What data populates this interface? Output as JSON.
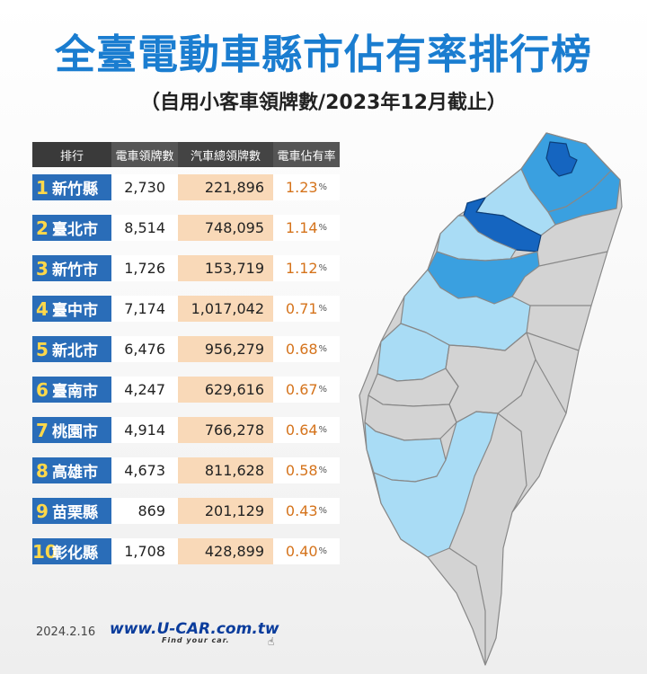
{
  "title": "全臺電動車縣市佔有率排行榜",
  "subtitle": "（自用小客車領牌數/2023年12月截止）",
  "table": {
    "headers": {
      "rank": "排行",
      "ev": "電車領牌數",
      "total": "汽車總領牌數",
      "rate": "電車佔有率"
    },
    "pct_symbol": "%"
  },
  "chart_data": {
    "type": "table",
    "columns": [
      "排行",
      "電車領牌數",
      "汽車總領牌數",
      "電車佔有率"
    ],
    "rows": [
      {
        "rank": "1",
        "city": "新竹縣",
        "ev": "2,730",
        "total": "221,896",
        "rate": "1.23"
      },
      {
        "rank": "2",
        "city": "臺北市",
        "ev": "8,514",
        "total": "748,095",
        "rate": "1.14"
      },
      {
        "rank": "3",
        "city": "新竹市",
        "ev": "1,726",
        "total": "153,719",
        "rate": "1.12"
      },
      {
        "rank": "4",
        "city": "臺中市",
        "ev": "7,174",
        "total": "1,017,042",
        "rate": "0.71"
      },
      {
        "rank": "5",
        "city": "新北市",
        "ev": "6,476",
        "total": "956,279",
        "rate": "0.68"
      },
      {
        "rank": "6",
        "city": "臺南市",
        "ev": "4,247",
        "total": "629,616",
        "rate": "0.67"
      },
      {
        "rank": "7",
        "city": "桃園市",
        "ev": "4,914",
        "total": "766,278",
        "rate": "0.64"
      },
      {
        "rank": "8",
        "city": "高雄市",
        "ev": "4,673",
        "total": "811,628",
        "rate": "0.58"
      },
      {
        "rank": "9",
        "city": "苗栗縣",
        "ev": "869",
        "total": "201,129",
        "rate": "0.43"
      },
      {
        "rank": "10",
        "city": "彰化縣",
        "ev": "1,708",
        "total": "428,899",
        "rate": "0.40"
      }
    ]
  },
  "map_colors": {
    "dark": "#1565c0",
    "medium": "#3aa0e0",
    "light": "#a9dcf5",
    "grey": "#d3d3d3",
    "border": "#888888"
  },
  "footer": {
    "date": "2024.2.16",
    "brand": "www.U-CAR.com.tw",
    "tagline": "Find your car."
  }
}
